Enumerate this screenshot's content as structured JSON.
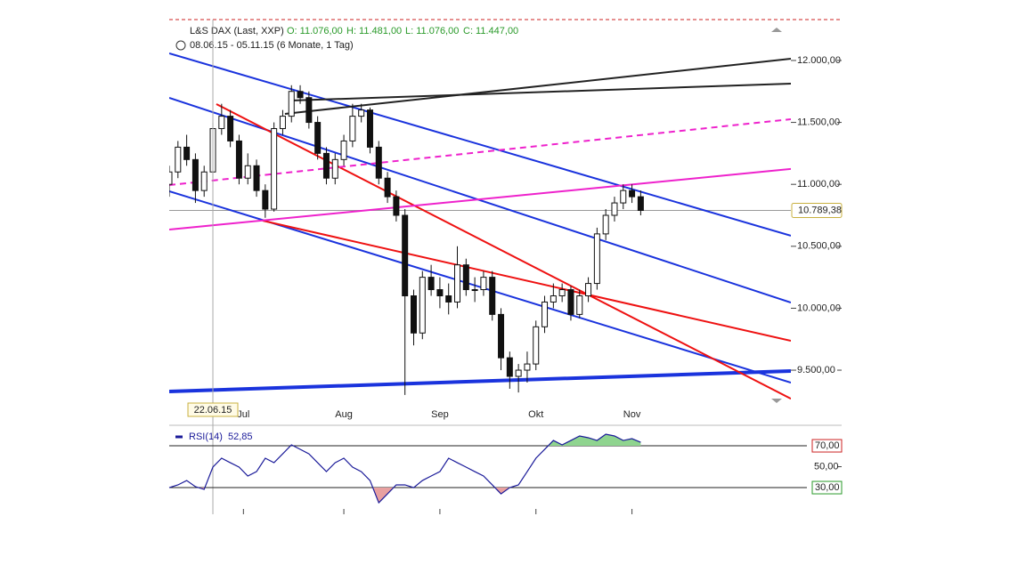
{
  "header": {
    "instrument": "L&S DAX (Last, XXP)",
    "open": "O: 11.076,00",
    "high": "H: 11.481,00",
    "low": "L: 11.076,00",
    "close": "C: 11.447,00",
    "range": "08.06.15 - 05.11.15 (6 Monate, 1 Tag)"
  },
  "chart_data": [
    {
      "type": "candlestick",
      "x": [
        0,
        2,
        4,
        6,
        8,
        10,
        12,
        14,
        16,
        18,
        20,
        22,
        24,
        26,
        28,
        30,
        32,
        34,
        36,
        38,
        40,
        42,
        44,
        46,
        48,
        50,
        52,
        54,
        56,
        58,
        60,
        62,
        64,
        66,
        68,
        70,
        72,
        74,
        76,
        78,
        80,
        82,
        84,
        86,
        88,
        90,
        92,
        94,
        96,
        98,
        100,
        102,
        104,
        106,
        108
      ],
      "candles": [
        [
          11000,
          11150,
          10900,
          11100
        ],
        [
          11100,
          11350,
          11050,
          11300
        ],
        [
          11300,
          11400,
          11150,
          11200
        ],
        [
          11200,
          11250,
          10850,
          10950
        ],
        [
          10950,
          11150,
          10900,
          11100
        ],
        [
          11100,
          11500,
          11050,
          11450
        ],
        [
          11450,
          11650,
          11400,
          11550
        ],
        [
          11550,
          11600,
          11300,
          11350
        ],
        [
          11350,
          11400,
          11000,
          11050
        ],
        [
          11050,
          11250,
          11000,
          11150
        ],
        [
          11150,
          11200,
          10900,
          10950
        ],
        [
          10950,
          11000,
          10730,
          10800
        ],
        [
          10800,
          11500,
          10780,
          11450
        ],
        [
          11450,
          11600,
          11400,
          11550
        ],
        [
          11550,
          11800,
          11500,
          11750
        ],
        [
          11750,
          11800,
          11650,
          11700
        ],
        [
          11700,
          11750,
          11450,
          11500
        ],
        [
          11500,
          11550,
          11200,
          11250
        ],
        [
          11250,
          11300,
          11000,
          11050
        ],
        [
          11050,
          11250,
          11000,
          11200
        ],
        [
          11200,
          11400,
          11150,
          11350
        ],
        [
          11350,
          11650,
          11300,
          11550
        ],
        [
          11550,
          11650,
          11500,
          11600
        ],
        [
          11600,
          11620,
          11250,
          11300
        ],
        [
          11300,
          11350,
          11000,
          11050
        ],
        [
          11050,
          11100,
          10850,
          10900
        ],
        [
          10900,
          10950,
          10700,
          10750
        ],
        [
          10750,
          10800,
          9300,
          10100
        ],
        [
          10100,
          10150,
          9700,
          9800
        ],
        [
          9800,
          10300,
          9750,
          10250
        ],
        [
          10250,
          10350,
          10100,
          10150
        ],
        [
          10150,
          10250,
          10000,
          10100
        ],
        [
          10100,
          10200,
          9950,
          10050
        ],
        [
          10050,
          10500,
          10000,
          10350
        ],
        [
          10350,
          10400,
          10100,
          10150
        ],
        [
          10150,
          10250,
          10050,
          10150
        ],
        [
          10150,
          10300,
          10100,
          10250
        ],
        [
          10250,
          10300,
          9900,
          9950
        ],
        [
          9950,
          10000,
          9500,
          9600
        ],
        [
          9600,
          9650,
          9350,
          9450
        ],
        [
          9450,
          9550,
          9320,
          9500
        ],
        [
          9500,
          9650,
          9400,
          9550
        ],
        [
          9550,
          9900,
          9500,
          9850
        ],
        [
          9850,
          10100,
          9800,
          10050
        ],
        [
          10050,
          10200,
          10000,
          10100
        ],
        [
          10100,
          10200,
          10050,
          10150
        ],
        [
          10150,
          10180,
          9900,
          9950
        ],
        [
          9950,
          10150,
          9920,
          10100
        ],
        [
          10100,
          10250,
          10050,
          10200
        ],
        [
          10200,
          10650,
          10150,
          10600
        ],
        [
          10600,
          10800,
          10550,
          10750
        ],
        [
          10750,
          10900,
          10700,
          10850
        ],
        [
          10850,
          11000,
          10800,
          10950
        ],
        [
          10950,
          11000,
          10850,
          10900
        ],
        [
          10900,
          10950,
          10750,
          10789.38
        ]
      ],
      "xlim": [
        0,
        142.4
      ],
      "ylim": [
        9055,
        12330
      ],
      "yticks": [
        {
          "value": 9500,
          "label": "9.500,00"
        },
        {
          "value": 10000,
          "label": "10.000,00"
        },
        {
          "value": 10500,
          "label": "10.500,00"
        },
        {
          "value": 11000,
          "label": "11.000,00"
        },
        {
          "value": 11500,
          "label": "11.500,00"
        },
        {
          "value": 12000,
          "label": "12.000,00"
        }
      ],
      "xticks": [
        {
          "value": 17,
          "label": "Jul"
        },
        {
          "value": 40,
          "label": "Aug"
        },
        {
          "value": 62,
          "label": "Sep"
        },
        {
          "value": 84,
          "label": "Okt"
        },
        {
          "value": 106,
          "label": "Nov"
        }
      ],
      "last_price": {
        "value": 10789.38,
        "label": "10.789,38"
      },
      "crosshair": {
        "x": 10,
        "label": "22.06.15"
      },
      "drawings": [
        {
          "color": "#1a33dd",
          "from": [
            0,
            12057
          ],
          "to": [
            142.4,
            10585
          ]
        },
        {
          "color": "#1a33dd",
          "from": [
            0,
            11698
          ],
          "to": [
            142.4,
            10046
          ]
        },
        {
          "color": "#1a33dd",
          "from": [
            0,
            10944
          ],
          "to": [
            142.4,
            9399
          ]
        },
        {
          "color": "#1a33dd",
          "from": [
            0,
            9328
          ],
          "to": [
            142.4,
            9493
          ]
        },
        {
          "color": "#ee1111",
          "from": [
            10.8,
            11648
          ],
          "to": [
            142.4,
            9270
          ]
        },
        {
          "color": "#ee1111",
          "from": [
            21.4,
            10707
          ],
          "to": [
            142.4,
            9737
          ]
        },
        {
          "color": "#ee22cc",
          "from": [
            0,
            10635
          ],
          "to": [
            142.4,
            11124
          ]
        },
        {
          "color": "#ee22cc",
          "from": [
            0,
            10994
          ],
          "to": [
            142.4,
            11526
          ]
        },
        {
          "color": "#222222",
          "from": [
            26.5,
            11569
          ],
          "to": [
            142.4,
            12014
          ]
        },
        {
          "color": "#222222",
          "from": [
            28.6,
            11677
          ],
          "to": [
            142.4,
            11813
          ]
        }
      ]
    },
    {
      "type": "line",
      "name": "RSI(14)",
      "value_label": "52,85",
      "color": "#1a1a99",
      "x": [
        0,
        2,
        4,
        6,
        8,
        10,
        12,
        14,
        16,
        18,
        20,
        22,
        24,
        26,
        28,
        30,
        32,
        34,
        36,
        38,
        40,
        42,
        44,
        46,
        48,
        50,
        52,
        54,
        56,
        58,
        60,
        62,
        64,
        66,
        68,
        70,
        72,
        74,
        76,
        78,
        80,
        82,
        84,
        86,
        88,
        90,
        92,
        94,
        96,
        98,
        100,
        102,
        104,
        106,
        108
      ],
      "values": [
        30,
        32.6,
        36.8,
        30.9,
        28.3,
        49.6,
        58.1,
        53.8,
        49.6,
        41.1,
        45.3,
        58.1,
        53.8,
        62.3,
        70.9,
        66.6,
        62.3,
        53.8,
        45.3,
        53.8,
        58.1,
        49.6,
        45.3,
        36.8,
        15.5,
        24,
        32.6,
        32.6,
        30,
        36.8,
        41.1,
        45.3,
        58.1,
        53.8,
        49.6,
        45.3,
        41.1,
        32.6,
        24,
        30,
        32.6,
        45.3,
        58.1,
        66.6,
        75.1,
        70.9,
        75.1,
        79.4,
        77.7,
        75.1,
        81.1,
        79.4,
        75.1,
        76.8,
        73.4
      ],
      "xlim": [
        0,
        142.4
      ],
      "ylim": [
        4.5,
        87.9
      ],
      "yticks": [
        {
          "value": 30,
          "label": "30,00"
        },
        {
          "value": 50,
          "label": "50,00"
        },
        {
          "value": 70,
          "label": "70,00"
        }
      ]
    }
  ]
}
